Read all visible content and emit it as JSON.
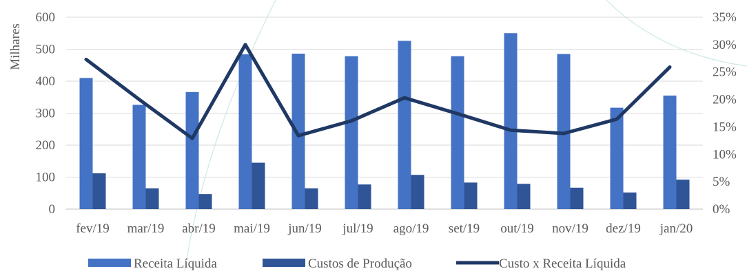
{
  "chart_data": {
    "type": "bar",
    "categories": [
      "fev/19",
      "mar/19",
      "abr/19",
      "mai/19",
      "jun/19",
      "jul/19",
      "ago/19",
      "set/19",
      "out/19",
      "nov/19",
      "dez/19",
      "jan/20"
    ],
    "ylabel": "Milhares",
    "ylim": [
      0,
      600
    ],
    "yticks": [
      "0",
      "100",
      "200",
      "300",
      "400",
      "500",
      "600"
    ],
    "y2lim": [
      0,
      35
    ],
    "y2ticks": [
      "0%",
      "5%",
      "10%",
      "15%",
      "20%",
      "25%",
      "30%",
      "35%"
    ],
    "grid": true,
    "legend_position": "bottom",
    "series": [
      {
        "name": "Receita Líquida",
        "type": "bar",
        "axis": "left",
        "color": "#4472c4",
        "values": [
          410,
          326,
          366,
          484,
          486,
          478,
          526,
          478,
          550,
          485,
          317,
          355
        ]
      },
      {
        "name": "Custos de Produção",
        "type": "bar",
        "axis": "left",
        "color": "#2f5597",
        "values": [
          112,
          65,
          47,
          145,
          65,
          77,
          107,
          83,
          79,
          67,
          52,
          92
        ]
      },
      {
        "name": "Custo x Receita Líquida",
        "type": "line",
        "axis": "right",
        "color": "#1f3864",
        "values": [
          27.3,
          20.0,
          12.9,
          30.0,
          13.4,
          16.1,
          20.3,
          17.4,
          14.4,
          13.8,
          16.4,
          25.9
        ]
      }
    ]
  }
}
